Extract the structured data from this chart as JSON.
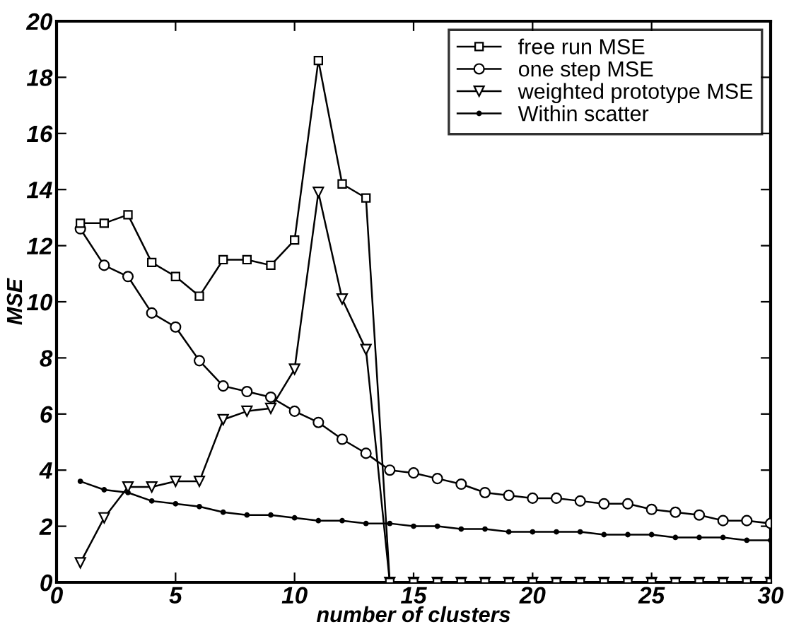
{
  "chart_data": {
    "type": "line",
    "xlabel": "number of clusters",
    "ylabel": "MSE",
    "x": [
      1,
      2,
      3,
      4,
      5,
      6,
      7,
      8,
      9,
      10,
      11,
      12,
      13,
      14,
      15,
      16,
      17,
      18,
      19,
      20,
      21,
      22,
      23,
      24,
      25,
      26,
      27,
      28,
      29,
      30
    ],
    "series": [
      {
        "name": "free run MSE",
        "color": "#000000",
        "marker": "square",
        "values": [
          12.8,
          12.8,
          13.1,
          11.4,
          10.9,
          10.2,
          11.5,
          11.5,
          11.3,
          12.2,
          18.6,
          14.2,
          13.7,
          0,
          0,
          0,
          0,
          0,
          0,
          0,
          0,
          0,
          0,
          0,
          0,
          0,
          0,
          0,
          0,
          0
        ]
      },
      {
        "name": "one step MSE",
        "color": "#000000",
        "marker": "circle",
        "values": [
          12.6,
          11.3,
          10.9,
          9.6,
          9.1,
          7.9,
          7.0,
          6.8,
          6.6,
          6.1,
          5.7,
          5.1,
          4.6,
          4.0,
          3.9,
          3.7,
          3.5,
          3.2,
          3.1,
          3.0,
          3.0,
          2.9,
          2.8,
          2.8,
          2.6,
          2.5,
          2.4,
          2.2,
          2.2,
          2.1
        ]
      },
      {
        "name": "weighted prototype MSE",
        "color": "#000000",
        "marker": "triangle",
        "values": [
          0.7,
          2.3,
          3.4,
          3.4,
          3.6,
          3.6,
          5.8,
          6.1,
          6.2,
          7.6,
          13.9,
          10.1,
          8.3,
          0,
          0,
          0,
          0,
          0,
          0,
          0,
          0,
          0,
          0,
          0,
          0,
          0,
          0,
          0,
          0,
          0
        ]
      },
      {
        "name": "Within scatter",
        "color": "#000000",
        "marker": "point",
        "values": [
          3.6,
          3.3,
          3.2,
          2.9,
          2.8,
          2.7,
          2.5,
          2.4,
          2.4,
          2.3,
          2.2,
          2.2,
          2.1,
          2.1,
          2.0,
          2.0,
          1.9,
          1.9,
          1.8,
          1.8,
          1.8,
          1.8,
          1.7,
          1.7,
          1.7,
          1.6,
          1.6,
          1.6,
          1.5,
          1.5
        ]
      }
    ],
    "xlim": [
      0,
      30
    ],
    "xticks": [
      0,
      5,
      10,
      15,
      20,
      25,
      30
    ],
    "ylim": [
      0,
      20
    ],
    "yticks": [
      0,
      2,
      4,
      6,
      8,
      10,
      12,
      14,
      16,
      18,
      20
    ],
    "grid": false,
    "legend": "top right",
    "line_style": "solid"
  }
}
